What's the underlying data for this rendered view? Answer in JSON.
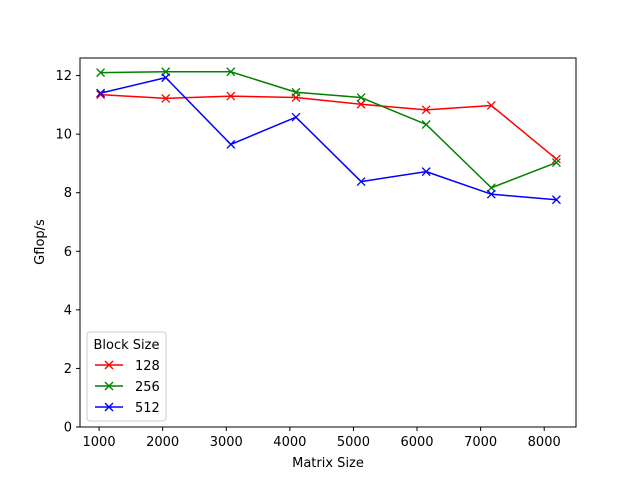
{
  "chart_data": {
    "type": "line",
    "xlabel": "Matrix Size",
    "ylabel": "Gflop/s",
    "xlim": [
      700,
      8500
    ],
    "ylim": [
      0,
      12.6
    ],
    "xticks": [
      1000,
      2000,
      3000,
      4000,
      5000,
      6000,
      7000,
      8000
    ],
    "yticks": [
      0,
      2,
      4,
      6,
      8,
      10,
      12
    ],
    "x": [
      1024,
      2048,
      3072,
      4096,
      5120,
      6144,
      7168,
      8192
    ],
    "marker": "x",
    "grid": false,
    "legend": {
      "title": "Block Size",
      "placement": "lower-left"
    },
    "series": [
      {
        "name": "128",
        "color": "#ff0000",
        "values": [
          11.35,
          11.22,
          11.3,
          11.25,
          11.02,
          10.83,
          10.98,
          9.15
        ]
      },
      {
        "name": "256",
        "color": "#008000",
        "values": [
          12.1,
          12.13,
          12.13,
          11.43,
          11.25,
          10.33,
          8.17,
          9.03
        ]
      },
      {
        "name": "512",
        "color": "#0000ff",
        "values": [
          11.4,
          11.93,
          9.65,
          10.58,
          8.38,
          8.72,
          7.95,
          7.76
        ]
      }
    ]
  }
}
